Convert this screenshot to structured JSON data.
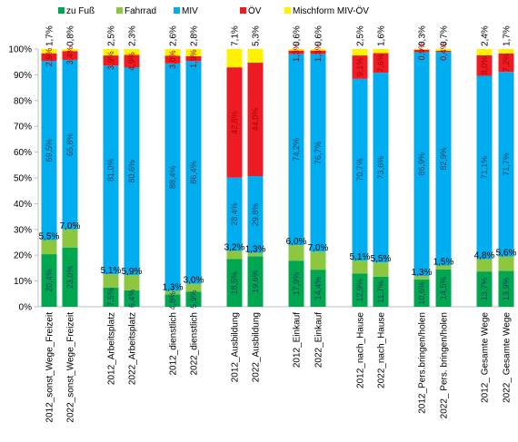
{
  "chart_data": {
    "type": "bar",
    "stacked": true,
    "ylim": [
      0,
      100
    ],
    "y_ticks": [
      "0%",
      "10%",
      "20%",
      "30%",
      "40%",
      "50%",
      "60%",
      "70%",
      "80%",
      "90%",
      "100%"
    ],
    "grid": false,
    "legend_position": "top",
    "categories": [
      "2012_sonst_Wege_Freizeit",
      "2022_sonst_Wege_Freizeit",
      "2012_Arbeitsplatz",
      "2022_Arbeitsplatz",
      "2012_dienstlich",
      "2022_dienstlich",
      "2012_Ausbildung",
      "2022_Ausbildung",
      "2012_Einkauf",
      "2022_Einkauf",
      "2012_nach_Hause",
      "2022_nach_Hause",
      "2012_Pers.bringen/holen",
      "2022_ Pers. bringen/holen",
      "2012_ Gesamte Wege",
      "2022_ Gesamte Wege"
    ],
    "series": [
      {
        "name": "zu Fuß",
        "color": "#00a650",
        "values": [
          20.4,
          23.0,
          7.5,
          6.4,
          4.8,
          5.9,
          18.5,
          19.6,
          17.9,
          14.4,
          12.9,
          11.7,
          10.6,
          14.5,
          13.7,
          13.9
        ],
        "labels": [
          "20,4%",
          "23,0%",
          "7,5%",
          "6,4%",
          "4,8%",
          "5,9%",
          "18,5%",
          "19,6%",
          "17,9%",
          "14,4%",
          "12,9%",
          "11,7%",
          "10,6%",
          "14,5%",
          "13,7%",
          "13,9%"
        ]
      },
      {
        "name": "Fahrrad",
        "color": "#8dc63f",
        "values": [
          5.5,
          7.0,
          5.1,
          5.9,
          1.3,
          3.0,
          3.2,
          1.3,
          6.0,
          7.0,
          5.1,
          5.5,
          1.3,
          1.5,
          4.8,
          5.6
        ],
        "labels": [
          "5,5%",
          "7,0%",
          "5,1%",
          "5,9%",
          "1,3%",
          "3,0%",
          "3,2%",
          "1,3%",
          "6,0%",
          "7,0%",
          "5,1%",
          "5,5%",
          "1,3%",
          "1,5%",
          "4,8%",
          "5,6%"
        ]
      },
      {
        "name": "MIV",
        "color": "#00aeef",
        "values": [
          69.5,
          65.8,
          81.0,
          80.6,
          88.4,
          86.4,
          28.4,
          29.8,
          74.2,
          76.7,
          70.7,
          73.6,
          86.9,
          82.9,
          71.1,
          71.7
        ],
        "labels": [
          "69,5%",
          "65,8%",
          "81,0%",
          "80,6%",
          "88,4%",
          "86,4%",
          "28,4%",
          "29,8%",
          "74,2%",
          "76,7%",
          "70,7%",
          "73,6%",
          "86,9%",
          "82,9%",
          "71,1%",
          "71,7%"
        ]
      },
      {
        "name": "ÖV",
        "color": "#ed1c24",
        "values": [
          2.9,
          3.4,
          3.9,
          4.9,
          3.0,
          1.9,
          42.8,
          44.0,
          1.3,
          1.3,
          9.1,
          7.6,
          0.9,
          0.4,
          8.0,
          7.2
        ],
        "labels": [
          "2,9%",
          "3,4%",
          "3,9%",
          "4,9%",
          "3,0%",
          "1,9%",
          "42,8%",
          "44,0%",
          "1,3%",
          "1,3%",
          "9,1%",
          "7,6%",
          "0,9%",
          "0,4%",
          "8,0%",
          "7,2%"
        ]
      },
      {
        "name": "Mischform MIV-ÖV",
        "color": "#fff200",
        "values": [
          1.7,
          0.8,
          2.5,
          2.3,
          2.6,
          2.8,
          7.1,
          5.3,
          0.6,
          0.6,
          2.5,
          1.6,
          0.3,
          0.7,
          2.4,
          1.7
        ],
        "labels": [
          "1,7%",
          "0,8%",
          "2,5%",
          "2,3%",
          "2,6%",
          "2,8%",
          "7,1%",
          "5,3%",
          "0,6%",
          "0,6%",
          "2,5%",
          "1,6%",
          "0,3%",
          "0,7%",
          "2,4%",
          "1,7%"
        ]
      }
    ]
  }
}
